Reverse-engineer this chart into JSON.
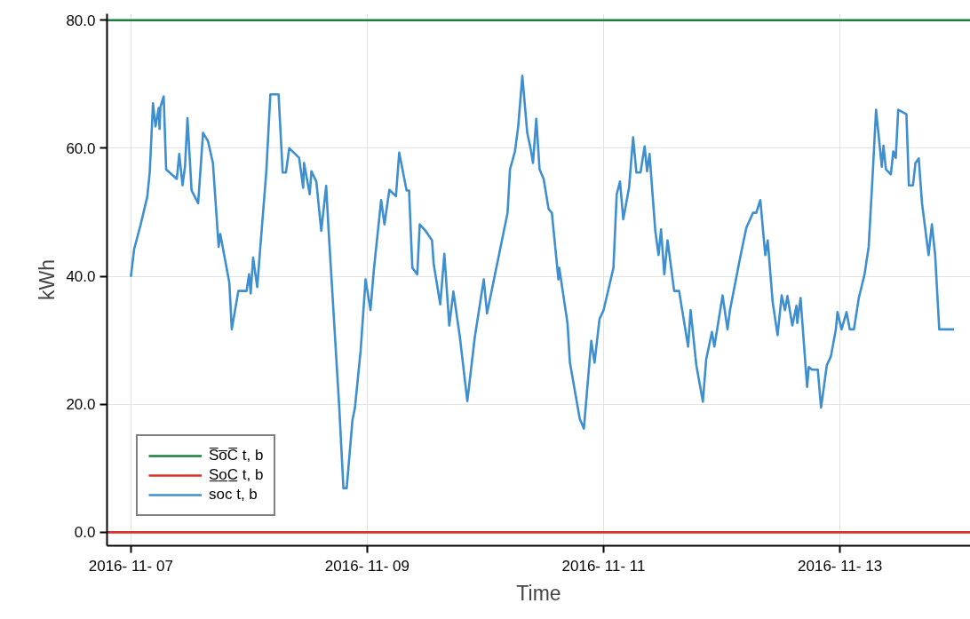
{
  "chart_data": {
    "type": "line",
    "xlabel": "Time",
    "ylabel": "kWh",
    "xlim": [
      "2016-11-06T19:10",
      "2016-11-14T02:30"
    ],
    "ylim": [
      -2.1,
      81.0
    ],
    "xticks": [
      {
        "value": "2016-11-07",
        "label": "2016- 11- 07"
      },
      {
        "value": "2016-11-09",
        "label": "2016- 11- 09"
      },
      {
        "value": "2016-11-11",
        "label": "2016- 11- 11"
      },
      {
        "value": "2016-11-13",
        "label": "2016- 11- 13"
      }
    ],
    "yticks": [
      {
        "value": 0,
        "label": "0.0"
      },
      {
        "value": 20,
        "label": "20.0"
      },
      {
        "value": 40,
        "label": "40.0"
      },
      {
        "value": 60,
        "label": "60.0"
      },
      {
        "value": 80,
        "label": "80.0"
      }
    ],
    "grid": true,
    "legend": "bottom left",
    "line_style": "solid",
    "marker": "none",
    "series": [
      {
        "name": "S̅o̅C̅ t, b",
        "color": "#1e7d3c",
        "x": [
          "2016-11-06T19:10",
          "2016-11-14T02:30"
        ],
        "values": [
          80,
          80
        ]
      },
      {
        "name": "S̲o̲C̲ t, b",
        "color": "#d9302c",
        "x": [
          "2016-11-06T19:10",
          "2016-11-14T02:30"
        ],
        "values": [
          0,
          0
        ]
      },
      {
        "name": "soc t, b",
        "color": "#3e8fd0",
        "x": [
          "2016-11-07T00:00",
          "2016-11-07T00:40",
          "2016-11-07T02:00",
          "2016-11-07T03:20",
          "2016-11-07T03:50",
          "2016-11-07T04:30",
          "2016-11-07T05:00",
          "2016-11-07T05:40",
          "2016-11-07T05:50",
          "2016-11-07T06:00",
          "2016-11-07T06:40",
          "2016-11-07T07:10",
          "2016-11-07T09:20",
          "2016-11-07T09:50",
          "2016-11-07T10:30",
          "2016-11-07T11:00",
          "2016-11-07T11:30",
          "2016-11-07T12:20",
          "2016-11-07T13:40",
          "2016-11-07T14:40",
          "2016-11-07T15:40",
          "2016-11-07T16:40",
          "2016-11-07T17:50",
          "2016-11-07T18:10",
          "2016-11-07T20:00",
          "2016-11-07T20:30",
          "2016-11-07T21:50",
          "2016-11-07T23:30",
          "2016-11-08T00:00",
          "2016-11-08T00:20",
          "2016-11-08T00:50",
          "2016-11-08T01:40",
          "2016-11-08T02:10",
          "2016-11-08T03:30",
          "2016-11-08T04:20",
          "2016-11-08T06:00",
          "2016-11-08T06:50",
          "2016-11-08T07:30",
          "2016-11-08T08:10",
          "2016-11-08T10:10",
          "2016-11-08T11:00",
          "2016-11-08T11:10",
          "2016-11-08T12:20",
          "2016-11-08T12:40",
          "2016-11-08T13:40",
          "2016-11-08T14:40",
          "2016-11-08T15:40",
          "2016-11-08T16:10",
          "2016-11-08T18:20",
          "2016-11-08T19:10",
          "2016-11-08T19:50",
          "2016-11-08T21:00",
          "2016-11-08T21:30",
          "2016-11-08T22:40",
          "2016-11-08T23:40",
          "2016-11-09T00:40",
          "2016-11-09T01:20",
          "2016-11-09T02:50",
          "2016-11-09T03:30",
          "2016-11-09T04:30",
          "2016-11-09T05:50",
          "2016-11-09T06:30",
          "2016-11-09T08:00",
          "2016-11-09T08:30",
          "2016-11-09T09:10",
          "2016-11-09T10:10",
          "2016-11-09T10:40",
          "2016-11-09T11:50",
          "2016-11-09T13:10",
          "2016-11-09T13:30",
          "2016-11-09T14:50",
          "2016-11-09T15:40",
          "2016-11-09T16:40",
          "2016-11-09T17:30",
          "2016-11-09T18:50",
          "2016-11-09T20:20",
          "2016-11-09T21:50",
          "2016-11-09T23:40",
          "2016-11-10T00:20",
          "2016-11-10T04:30",
          "2016-11-10T05:00",
          "2016-11-10T06:00",
          "2016-11-10T06:40",
          "2016-11-10T07:30",
          "2016-11-10T08:30",
          "2016-11-10T09:10",
          "2016-11-10T09:40",
          "2016-11-10T10:20",
          "2016-11-10T11:00",
          "2016-11-10T11:50",
          "2016-11-10T12:50",
          "2016-11-10T13:30",
          "2016-11-10T14:50",
          "2016-11-10T15:00",
          "2016-11-10T16:40",
          "2016-11-10T17:10",
          "2016-11-10T19:10",
          "2016-11-10T20:00",
          "2016-11-10T21:30",
          "2016-11-10T22:10",
          "2016-11-10T23:10",
          "2016-11-11T00:00",
          "2016-11-11T02:00",
          "2016-11-11T02:40",
          "2016-11-11T03:20",
          "2016-11-11T04:00",
          "2016-11-11T05:10",
          "2016-11-11T06:00",
          "2016-11-11T06:40",
          "2016-11-11T07:30",
          "2016-11-11T08:20",
          "2016-11-11T08:50",
          "2016-11-11T09:20",
          "2016-11-11T10:30",
          "2016-11-11T11:10",
          "2016-11-11T11:40",
          "2016-11-11T12:20",
          "2016-11-11T13:00",
          "2016-11-11T14:20",
          "2016-11-11T15:20",
          "2016-11-11T17:10",
          "2016-11-11T17:40",
          "2016-11-11T18:50",
          "2016-11-11T20:10",
          "2016-11-11T20:50",
          "2016-11-11T22:00",
          "2016-11-11T22:30",
          "2016-11-12T00:10",
          "2016-11-12T01:10",
          "2016-11-12T01:40",
          "2016-11-12T03:50",
          "2016-11-12T05:00",
          "2016-11-12T06:20",
          "2016-11-12T07:00",
          "2016-11-12T07:50",
          "2016-11-12T08:50",
          "2016-11-12T09:20",
          "2016-11-12T10:20",
          "2016-11-12T11:20",
          "2016-11-12T12:10",
          "2016-11-12T12:50",
          "2016-11-12T13:20",
          "2016-11-12T14:20",
          "2016-11-12T15:10",
          "2016-11-12T15:20",
          "2016-11-12T16:00",
          "2016-11-12T17:20",
          "2016-11-12T17:40",
          "2016-11-12T18:20",
          "2016-11-12T19:30",
          "2016-11-12T20:10",
          "2016-11-12T21:20",
          "2016-11-12T22:10",
          "2016-11-12T23:10",
          "2016-11-12T23:30",
          "2016-11-13T00:20",
          "2016-11-13T01:20",
          "2016-11-13T02:00",
          "2016-11-13T02:50",
          "2016-11-13T03:50",
          "2016-11-13T05:00",
          "2016-11-13T05:50",
          "2016-11-13T06:40",
          "2016-11-13T07:20",
          "2016-11-13T08:30",
          "2016-11-13T08:50",
          "2016-11-13T09:20",
          "2016-11-13T10:20",
          "2016-11-13T10:50",
          "2016-11-13T11:20",
          "2016-11-13T11:50",
          "2016-11-13T13:30",
          "2016-11-13T14:00",
          "2016-11-13T14:50",
          "2016-11-13T15:20",
          "2016-11-13T16:00",
          "2016-11-13T16:40",
          "2016-11-13T18:00",
          "2016-11-13T18:40",
          "2016-11-13T19:20",
          "2016-11-13T20:10",
          "2016-11-13T23:10"
        ],
        "values": [
          39.9,
          44.2,
          48.1,
          52.4,
          56.2,
          67.0,
          63.4,
          66.3,
          63.0,
          66.4,
          68.1,
          56.7,
          55.2,
          59.1,
          54.2,
          57.1,
          64.7,
          53.4,
          51.4,
          62.4,
          61.1,
          57.7,
          44.6,
          46.6,
          39.0,
          31.7,
          37.7,
          37.7,
          40.3,
          37.3,
          42.9,
          38.3,
          43.3,
          56.2,
          68.4,
          68.4,
          56.2,
          56.2,
          60.0,
          58.5,
          53.8,
          57.7,
          52.8,
          56.4,
          54.8,
          47.1,
          54.1,
          47.1,
          19.4,
          6.9,
          6.9,
          17.5,
          19.4,
          28.4,
          39.5,
          34.7,
          40.9,
          51.9,
          48.1,
          53.5,
          52.5,
          59.3,
          53.4,
          53.4,
          41.3,
          40.3,
          48.1,
          47.1,
          45.6,
          41.9,
          35.6,
          43.5,
          32.3,
          37.6,
          30.4,
          20.5,
          30.4,
          39.5,
          34.2,
          49.9,
          56.7,
          59.5,
          63.4,
          71.3,
          62.4,
          60.0,
          57.7,
          64.6,
          56.7,
          55.2,
          50.5,
          49.9,
          39.5,
          41.3,
          32.7,
          26.5,
          17.7,
          16.2,
          29.9,
          26.5,
          33.3,
          34.7,
          41.3,
          52.8,
          54.8,
          48.9,
          53.8,
          61.7,
          56.2,
          56.2,
          60.3,
          56.4,
          59.1,
          47.1,
          43.3,
          47.3,
          40.3,
          45.6,
          37.7,
          37.7,
          29.0,
          34.7,
          26.1,
          20.4,
          27.0,
          31.3,
          29.0,
          37.0,
          31.7,
          34.7,
          43.3,
          47.6,
          49.9,
          49.9,
          51.9,
          43.3,
          45.6,
          36.0,
          30.8,
          37.0,
          34.7,
          36.9,
          32.3,
          35.4,
          32.7,
          36.6,
          22.7,
          25.8,
          25.4,
          25.4,
          19.5,
          26.1,
          27.5,
          31.7,
          34.4,
          31.7,
          34.4,
          31.7,
          31.7,
          36.6,
          40.3,
          44.6,
          56.2,
          66.0,
          57.1,
          60.4,
          56.7,
          55.9,
          59.5,
          58.5,
          66.0,
          65.3,
          54.2,
          54.2,
          57.7,
          58.4,
          51.4,
          43.3,
          48.1,
          43.3,
          31.7,
          31.7
        ]
      }
    ]
  }
}
